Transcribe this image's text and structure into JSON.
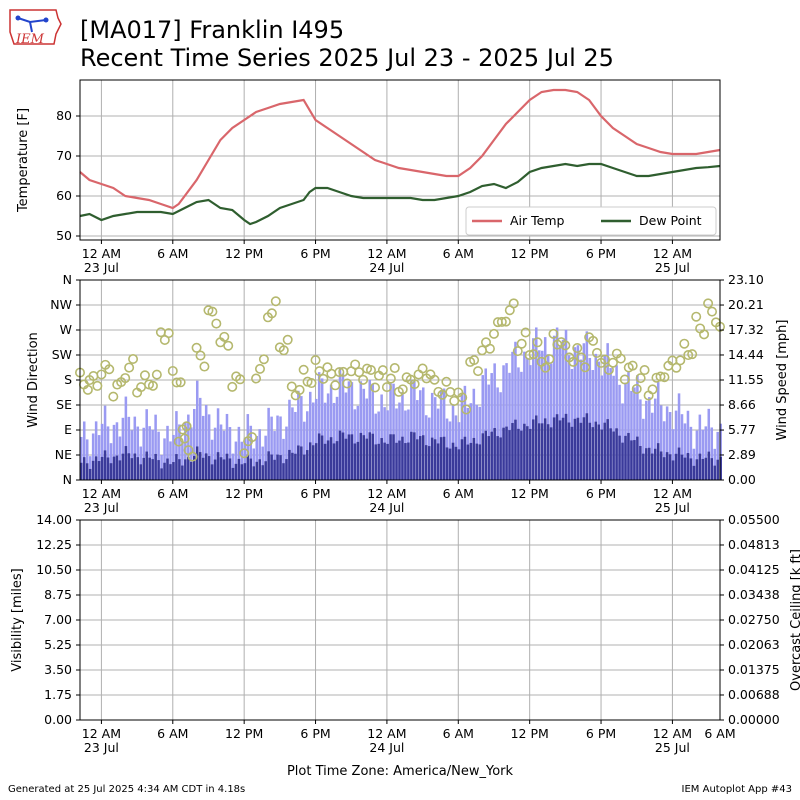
{
  "header": {
    "title_line_1": "[MA017] Franklin I495",
    "title_line_2": "Recent Time Series 2025 Jul 23 - 2025 Jul 25",
    "logo_text": "IEM"
  },
  "footer": {
    "generated": "Generated at 25 Jul 2025 4:34 AM CDT in 4.18s",
    "app": "IEM Autoplot App #43",
    "timezone": "Plot Time Zone: America/New_York"
  },
  "colors": {
    "air_temp": "#d9666b",
    "dew_point": "#2f5e2f",
    "gust_bar": "#9a9af2",
    "speed_bar": "#3a3a9a",
    "direction_marker": "#b5b86e",
    "ceiling_label": "#008000",
    "grid": "#b0b0b0"
  },
  "chart_data": [
    {
      "type": "line",
      "ylabel": "Temperature [F]",
      "ylim": [
        49,
        89
      ],
      "yticks": [
        50,
        60,
        70,
        80
      ],
      "xlim": [
        -1.8,
        52
      ],
      "xticks": [
        {
          "x": 0,
          "label": "12 AM",
          "sublabel": "23 Jul"
        },
        {
          "x": 6,
          "label": "6 AM",
          "sublabel": ""
        },
        {
          "x": 12,
          "label": "12 PM",
          "sublabel": ""
        },
        {
          "x": 18,
          "label": "6 PM",
          "sublabel": ""
        },
        {
          "x": 24,
          "label": "12 AM",
          "sublabel": "24 Jul"
        },
        {
          "x": 30,
          "label": "6 AM",
          "sublabel": ""
        },
        {
          "x": 36,
          "label": "12 PM",
          "sublabel": ""
        },
        {
          "x": 42,
          "label": "6 PM",
          "sublabel": ""
        },
        {
          "x": 48,
          "label": "12 AM",
          "sublabel": "25 Jul"
        }
      ],
      "grid": true,
      "legend": "lower-right",
      "series": [
        {
          "name": "Air Temp",
          "x": [
            -1.8,
            -1,
            0,
            1,
            2,
            3,
            4,
            5,
            6,
            6.5,
            7,
            8,
            9,
            10,
            11,
            12,
            13,
            14,
            15,
            16,
            17,
            18,
            19,
            20,
            21,
            22,
            23,
            24,
            25,
            26,
            27,
            28,
            29,
            30,
            31,
            32,
            33,
            34,
            35,
            36,
            37,
            38,
            39,
            40,
            41,
            42,
            43,
            44,
            45,
            46,
            47,
            48,
            49,
            50,
            51,
            52
          ],
          "values": [
            66,
            64,
            63,
            62,
            60,
            59.5,
            59,
            58,
            57,
            58,
            60,
            64,
            69,
            74,
            77,
            79,
            81,
            82,
            83,
            83.5,
            84,
            79,
            77,
            75,
            73,
            71,
            69,
            68,
            67,
            66.5,
            66,
            65.5,
            65,
            65,
            67,
            70,
            74,
            78,
            81,
            84,
            86,
            86.5,
            86.5,
            86,
            84,
            80,
            77,
            75,
            73,
            72,
            71,
            70.5,
            70.5,
            70.5,
            71,
            71.5
          ]
        },
        {
          "name": "Dew Point",
          "x": [
            -1.8,
            -1,
            0,
            1,
            2,
            3,
            4,
            5,
            6,
            7,
            8,
            9,
            10,
            11,
            12,
            12.5,
            13,
            14,
            15,
            16,
            17,
            17.5,
            18,
            19,
            20,
            21,
            22,
            23,
            24,
            25,
            26,
            27,
            28,
            29,
            30,
            31,
            32,
            33,
            34,
            35,
            36,
            37,
            38,
            39,
            40,
            41,
            42,
            43,
            44,
            45,
            46,
            47,
            48,
            49,
            50,
            51,
            52
          ],
          "values": [
            55,
            55.5,
            54,
            55,
            55.5,
            56,
            56,
            56,
            55.5,
            57,
            58.5,
            59,
            57,
            56.5,
            54,
            53,
            53.5,
            55,
            57,
            58,
            59,
            61,
            62,
            62,
            61,
            60,
            59.5,
            59.5,
            59.5,
            59.5,
            59.5,
            59,
            59,
            59.5,
            60,
            61,
            62.5,
            63,
            62,
            63.5,
            66,
            67,
            67.5,
            68,
            67.5,
            68,
            68,
            67,
            66,
            65,
            65,
            65.5,
            66,
            66.5,
            67,
            67.2,
            67.5
          ]
        }
      ]
    },
    {
      "type": "bar",
      "ylabel": "Wind Direction",
      "ylabel_right": "Wind Speed [mph]",
      "direction_ticks": [
        "N",
        "NE",
        "E",
        "SE",
        "S",
        "SW",
        "W",
        "NW",
        "N"
      ],
      "speed_ticks": [
        0.0,
        2.89,
        5.77,
        8.66,
        11.55,
        14.44,
        17.32,
        20.21,
        23.1
      ],
      "ylim_direction": [
        0,
        360
      ],
      "ylim_speed": [
        0,
        23.1
      ],
      "xlim": [
        -1.8,
        52
      ],
      "grid": true,
      "series": [
        {
          "name": "Wind Gust",
          "x": [
            -1.8,
            0,
            2,
            4,
            6,
            8,
            10,
            12,
            14,
            16,
            18,
            20,
            22,
            24,
            26,
            28,
            30,
            32,
            34,
            36,
            38,
            40,
            42,
            44,
            46,
            48,
            50,
            52
          ],
          "values": [
            5,
            6,
            7,
            6,
            5,
            9,
            6,
            5,
            6,
            8,
            10,
            11,
            10,
            9,
            10,
            9,
            8,
            11,
            13,
            15,
            16,
            15,
            14,
            11,
            9,
            8,
            6,
            6
          ]
        },
        {
          "name": "Wind Speed",
          "x": [
            -1.8,
            0,
            2,
            4,
            6,
            8,
            10,
            12,
            14,
            16,
            18,
            20,
            22,
            24,
            26,
            28,
            30,
            32,
            34,
            36,
            38,
            40,
            42,
            44,
            46,
            48,
            50,
            52
          ],
          "values": [
            2,
            2.5,
            3,
            2.5,
            2,
            3,
            2.5,
            2,
            2.5,
            3,
            4.5,
            5,
            5,
            4.5,
            5,
            4.5,
            4,
            5,
            6,
            6.5,
            7,
            7,
            6.5,
            5,
            3.5,
            3,
            2.5,
            2.5
          ]
        },
        {
          "name": "Wind Direction",
          "x": [
            -1.8,
            -1,
            0,
            1,
            2,
            3,
            4,
            5,
            6,
            6.5,
            7,
            8,
            9,
            10,
            11,
            12,
            13,
            14,
            15,
            16,
            17,
            18,
            19,
            20,
            21,
            22,
            23,
            24,
            25,
            26,
            27,
            28,
            29,
            30,
            31,
            32,
            33,
            34,
            35,
            36,
            37,
            38,
            39,
            40,
            41,
            42,
            43,
            44,
            45,
            46,
            47,
            48,
            49,
            50,
            51,
            52
          ],
          "direction": [
            180,
            170,
            190,
            160,
            200,
            175,
            185,
            270,
            190,
            80,
            60,
            220,
            290,
            240,
            170,
            60,
            200,
            310,
            250,
            170,
            190,
            200,
            185,
            180,
            190,
            185,
            180,
            185,
            175,
            190,
            200,
            170,
            160,
            140,
            200,
            230,
            270,
            300,
            250,
            240,
            220,
            260,
            230,
            220,
            240,
            200,
            210,
            190,
            180,
            170,
            200,
            220,
            240,
            280,
            300,
            260
          ]
        }
      ]
    },
    {
      "type": "line",
      "ylabel": "Visibility [miles]",
      "ylabel_right": "Overcast Ceiling [k ft]",
      "ylim": [
        0,
        14
      ],
      "yticks": [
        0.0,
        1.75,
        3.5,
        5.25,
        7.0,
        8.75,
        10.5,
        12.25,
        14.0
      ],
      "ylim_right": [
        0,
        0.055
      ],
      "yticks_right": [
        0.0,
        0.00688,
        0.01375,
        0.02063,
        0.0275,
        0.03438,
        0.04125,
        0.04813,
        0.055
      ],
      "xlim": [
        -1.8,
        52
      ],
      "xticks": [
        {
          "x": 0,
          "label": "12 AM",
          "sublabel": "23 Jul"
        },
        {
          "x": 6,
          "label": "6 AM",
          "sublabel": ""
        },
        {
          "x": 12,
          "label": "12 PM",
          "sublabel": ""
        },
        {
          "x": 18,
          "label": "6 PM",
          "sublabel": ""
        },
        {
          "x": 24,
          "label": "12 AM",
          "sublabel": "24 Jul"
        },
        {
          "x": 30,
          "label": "6 AM",
          "sublabel": ""
        },
        {
          "x": 36,
          "label": "12 PM",
          "sublabel": ""
        },
        {
          "x": 42,
          "label": "6 PM",
          "sublabel": ""
        },
        {
          "x": 48,
          "label": "12 AM",
          "sublabel": "25 Jul"
        },
        {
          "x": 54,
          "label": "6 AM",
          "sublabel": ""
        }
      ],
      "grid": true,
      "series": []
    }
  ]
}
